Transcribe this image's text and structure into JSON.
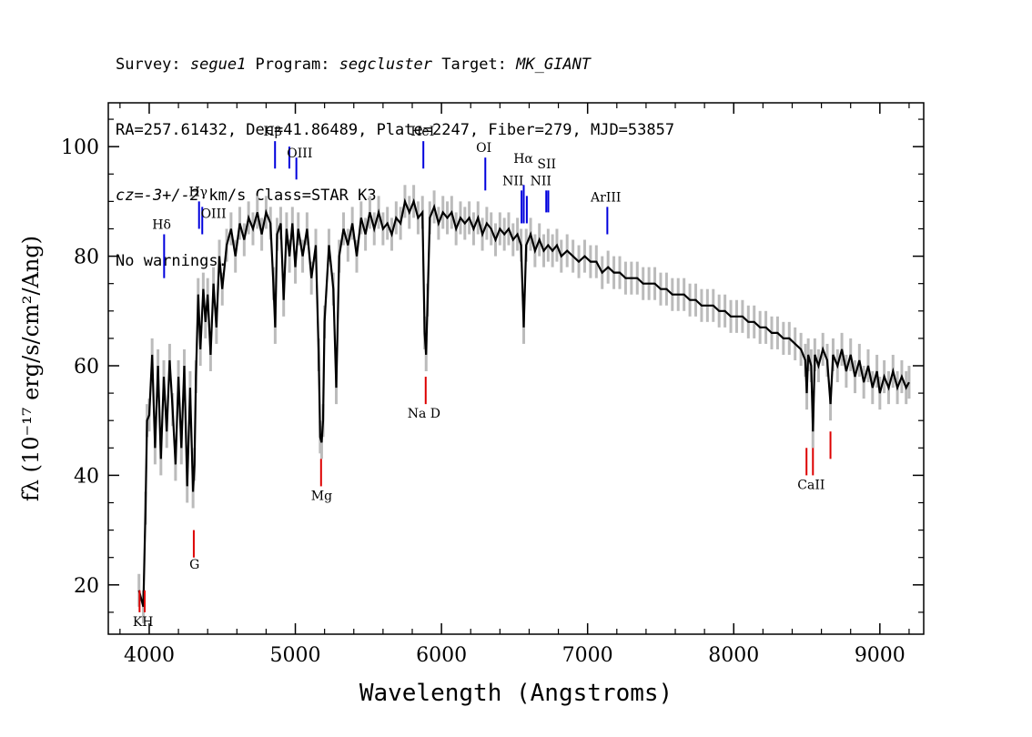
{
  "header": {
    "line1": {
      "survey_key": "Survey: ",
      "survey": "segue1",
      "program_key": " Program: ",
      "program": "segcluster",
      "target_key": " Target: ",
      "target": "MK_GIANT"
    },
    "line2": "RA=257.61432, Dec=41.86489, Plate=2247, Fiber=279, MJD=53857",
    "line3": {
      "cz": "cz=-3+/-2",
      "rest": " km/s Class=STAR K3"
    },
    "line4": "No warnings."
  },
  "chart_data": {
    "type": "line",
    "title": "",
    "xlabel": "Wavelength (Angstroms)",
    "ylabel": "fλ (10⁻¹⁷ erg/s/cm²/Ang)",
    "xlim": [
      3720,
      9300
    ],
    "ylim": [
      11,
      108
    ],
    "x_ticks": [
      4000,
      5000,
      6000,
      7000,
      8000,
      9000
    ],
    "y_ticks": [
      20,
      40,
      60,
      80,
      100
    ],
    "grid": false,
    "series": [
      {
        "color": "#000000",
        "spectrum": [
          [
            3930,
            19
          ],
          [
            3960,
            16
          ],
          [
            3975,
            34
          ],
          [
            3985,
            50
          ],
          [
            4000,
            51
          ],
          [
            4020,
            62
          ],
          [
            4040,
            45
          ],
          [
            4060,
            60
          ],
          [
            4080,
            43
          ],
          [
            4100,
            58
          ],
          [
            4120,
            48
          ],
          [
            4140,
            61
          ],
          [
            4160,
            52
          ],
          [
            4180,
            42
          ],
          [
            4200,
            58
          ],
          [
            4220,
            45
          ],
          [
            4240,
            60
          ],
          [
            4260,
            38
          ],
          [
            4280,
            56
          ],
          [
            4300,
            37
          ],
          [
            4310,
            42
          ],
          [
            4320,
            58
          ],
          [
            4335,
            73
          ],
          [
            4350,
            63
          ],
          [
            4370,
            74
          ],
          [
            4385,
            68
          ],
          [
            4400,
            73
          ],
          [
            4420,
            62
          ],
          [
            4440,
            75
          ],
          [
            4460,
            67
          ],
          [
            4480,
            80
          ],
          [
            4500,
            74
          ],
          [
            4530,
            82
          ],
          [
            4560,
            85
          ],
          [
            4590,
            80
          ],
          [
            4620,
            86
          ],
          [
            4650,
            83
          ],
          [
            4680,
            87
          ],
          [
            4710,
            85
          ],
          [
            4740,
            88
          ],
          [
            4770,
            84
          ],
          [
            4800,
            88
          ],
          [
            4830,
            86
          ],
          [
            4850,
            75
          ],
          [
            4862,
            67
          ],
          [
            4875,
            84
          ],
          [
            4900,
            86
          ],
          [
            4920,
            72
          ],
          [
            4940,
            85
          ],
          [
            4960,
            80
          ],
          [
            4980,
            86
          ],
          [
            5000,
            78
          ],
          [
            5020,
            85
          ],
          [
            5050,
            80
          ],
          [
            5080,
            85
          ],
          [
            5110,
            76
          ],
          [
            5140,
            82
          ],
          [
            5160,
            62
          ],
          [
            5170,
            47
          ],
          [
            5180,
            46
          ],
          [
            5190,
            50
          ],
          [
            5200,
            68
          ],
          [
            5230,
            82
          ],
          [
            5260,
            74
          ],
          [
            5280,
            56
          ],
          [
            5300,
            80
          ],
          [
            5330,
            85
          ],
          [
            5360,
            82
          ],
          [
            5390,
            86
          ],
          [
            5420,
            80
          ],
          [
            5450,
            87
          ],
          [
            5480,
            84
          ],
          [
            5510,
            88
          ],
          [
            5540,
            85
          ],
          [
            5570,
            88
          ],
          [
            5600,
            85
          ],
          [
            5630,
            86
          ],
          [
            5660,
            84
          ],
          [
            5690,
            87
          ],
          [
            5720,
            86
          ],
          [
            5750,
            90
          ],
          [
            5780,
            88
          ],
          [
            5810,
            90
          ],
          [
            5840,
            87
          ],
          [
            5870,
            88
          ],
          [
            5885,
            66
          ],
          [
            5895,
            62
          ],
          [
            5905,
            72
          ],
          [
            5920,
            87
          ],
          [
            5950,
            89
          ],
          [
            5980,
            86
          ],
          [
            6010,
            88
          ],
          [
            6040,
            87
          ],
          [
            6070,
            88
          ],
          [
            6100,
            85
          ],
          [
            6130,
            87
          ],
          [
            6160,
            86
          ],
          [
            6190,
            87
          ],
          [
            6220,
            85
          ],
          [
            6250,
            87
          ],
          [
            6280,
            84
          ],
          [
            6310,
            86
          ],
          [
            6340,
            85
          ],
          [
            6370,
            83
          ],
          [
            6400,
            85
          ],
          [
            6430,
            84
          ],
          [
            6460,
            85
          ],
          [
            6490,
            83
          ],
          [
            6520,
            84
          ],
          [
            6545,
            82
          ],
          [
            6563,
            67
          ],
          [
            6580,
            82
          ],
          [
            6610,
            84
          ],
          [
            6640,
            81
          ],
          [
            6670,
            83
          ],
          [
            6700,
            81
          ],
          [
            6730,
            82
          ],
          [
            6760,
            81
          ],
          [
            6790,
            82
          ],
          [
            6820,
            80
          ],
          [
            6860,
            81
          ],
          [
            6900,
            80
          ],
          [
            6940,
            79
          ],
          [
            6980,
            80
          ],
          [
            7020,
            79
          ],
          [
            7060,
            79
          ],
          [
            7100,
            77
          ],
          [
            7140,
            78
          ],
          [
            7180,
            77
          ],
          [
            7220,
            77
          ],
          [
            7260,
            76
          ],
          [
            7300,
            76
          ],
          [
            7340,
            76
          ],
          [
            7380,
            75
          ],
          [
            7420,
            75
          ],
          [
            7460,
            75
          ],
          [
            7500,
            74
          ],
          [
            7540,
            74
          ],
          [
            7580,
            73
          ],
          [
            7620,
            73
          ],
          [
            7660,
            73
          ],
          [
            7700,
            72
          ],
          [
            7740,
            72
          ],
          [
            7780,
            71
          ],
          [
            7820,
            71
          ],
          [
            7860,
            71
          ],
          [
            7900,
            70
          ],
          [
            7940,
            70
          ],
          [
            7980,
            69
          ],
          [
            8020,
            69
          ],
          [
            8060,
            69
          ],
          [
            8100,
            68
          ],
          [
            8140,
            68
          ],
          [
            8180,
            67
          ],
          [
            8220,
            67
          ],
          [
            8260,
            66
          ],
          [
            8300,
            66
          ],
          [
            8340,
            65
          ],
          [
            8380,
            65
          ],
          [
            8420,
            64
          ],
          [
            8460,
            63
          ],
          [
            8490,
            61
          ],
          [
            8500,
            55
          ],
          [
            8510,
            62
          ],
          [
            8530,
            60
          ],
          [
            8542,
            48
          ],
          [
            8555,
            62
          ],
          [
            8580,
            60
          ],
          [
            8610,
            63
          ],
          [
            8640,
            61
          ],
          [
            8662,
            53
          ],
          [
            8680,
            62
          ],
          [
            8710,
            60
          ],
          [
            8740,
            63
          ],
          [
            8770,
            59
          ],
          [
            8800,
            62
          ],
          [
            8830,
            58
          ],
          [
            8860,
            61
          ],
          [
            8890,
            57
          ],
          [
            8920,
            60
          ],
          [
            8950,
            56
          ],
          [
            8980,
            59
          ],
          [
            9000,
            55
          ],
          [
            9030,
            58
          ],
          [
            9060,
            56
          ],
          [
            9090,
            59
          ],
          [
            9120,
            56
          ],
          [
            9150,
            58
          ],
          [
            9180,
            56
          ],
          [
            9200,
            57
          ]
        ]
      }
    ],
    "emission_lines": [
      {
        "name": "Hδ",
        "wave": 4102,
        "line_top": 84,
        "line_bottom": 76
      },
      {
        "name": "Hγ",
        "wave": 4341,
        "line_top": 90,
        "line_bottom": 85
      },
      {
        "name": "OIII",
        "wave": 4363,
        "line_top": 89,
        "line_bottom": 84
      },
      {
        "name": "Hβ",
        "wave": 4861,
        "line_top": 101,
        "line_bottom": 96
      },
      {
        "name": "OIII",
        "wave": 4959,
        "line_top": 100,
        "line_bottom": 96
      },
      {
        "name": "OIII",
        "wave": 5007,
        "line_top": 98,
        "line_bottom": 94
      },
      {
        "name": "HeI",
        "wave": 5876,
        "line_top": 101,
        "line_bottom": 96
      },
      {
        "name": "OI",
        "wave": 6300,
        "line_top": 98,
        "line_bottom": 92
      },
      {
        "name": "NII",
        "wave": 6548,
        "line_top": 92,
        "line_bottom": 86
      },
      {
        "name": "Hα",
        "wave": 6563,
        "line_top": 93,
        "line_bottom": 86
      },
      {
        "name": "NII",
        "wave": 6584,
        "line_top": 91,
        "line_bottom": 86
      },
      {
        "name": "SII",
        "wave": 6717,
        "line_top": 92,
        "line_bottom": 88
      },
      {
        "name": "SII",
        "wave": 6731,
        "line_top": 92,
        "line_bottom": 88
      },
      {
        "name": "ArIII",
        "wave": 7135,
        "line_top": 89,
        "line_bottom": 84
      }
    ],
    "absorption_lines": [
      {
        "name": "K",
        "wave": 3934,
        "line_top": 19,
        "line_bottom": 15
      },
      {
        "name": "H",
        "wave": 3969,
        "line_top": 19,
        "line_bottom": 15
      },
      {
        "name": "G",
        "wave": 4305,
        "line_top": 30,
        "line_bottom": 25
      },
      {
        "name": "Mg",
        "wave": 5176,
        "line_top": 43,
        "line_bottom": 38
      },
      {
        "name": "Na",
        "wave": 5892,
        "line_top": 58,
        "line_bottom": 53
      },
      {
        "name": "CaII",
        "wave": 8498,
        "line_top": 45,
        "line_bottom": 40
      },
      {
        "name": "CaII",
        "wave": 8542,
        "line_top": 45,
        "line_bottom": 40
      },
      {
        "name": "CaII",
        "wave": 8662,
        "line_top": 48,
        "line_bottom": 43
      }
    ],
    "labels": [
      {
        "text": "Hδ",
        "wave": 4085,
        "y": 85
      },
      {
        "text": "Hγ",
        "wave": 4335,
        "y": 91
      },
      {
        "text": "OIII",
        "wave": 4440,
        "y": 87
      },
      {
        "text": "Hβ",
        "wave": 4845,
        "y": 102
      },
      {
        "text": "OIII",
        "wave": 5030,
        "y": 98
      },
      {
        "text": "HeI",
        "wave": 5870,
        "y": 102
      },
      {
        "text": "OI",
        "wave": 6290,
        "y": 99
      },
      {
        "text": "NII",
        "wave": 6490,
        "y": 93
      },
      {
        "text": "Hα",
        "wave": 6560,
        "y": 97
      },
      {
        "text": "SII",
        "wave": 6720,
        "y": 96
      },
      {
        "text": "NII",
        "wave": 6680,
        "y": 93
      },
      {
        "text": "ArIII",
        "wave": 7125,
        "y": 90
      },
      {
        "text": "K",
        "wave": 3920,
        "y": 12.5
      },
      {
        "text": "H",
        "wave": 3990,
        "y": 12.5
      },
      {
        "text": "G",
        "wave": 4310,
        "y": 23
      },
      {
        "text": "Mg",
        "wave": 5180,
        "y": 35.5
      },
      {
        "text": "Na D",
        "wave": 5880,
        "y": 50.5
      },
      {
        "text": "CaII",
        "wave": 8530,
        "y": 37.5
      }
    ],
    "colors": {
      "spectrum": "#000000",
      "error_band": "#bbbbbb",
      "emission": "#0000dd",
      "absorption": "#dd0000"
    }
  }
}
